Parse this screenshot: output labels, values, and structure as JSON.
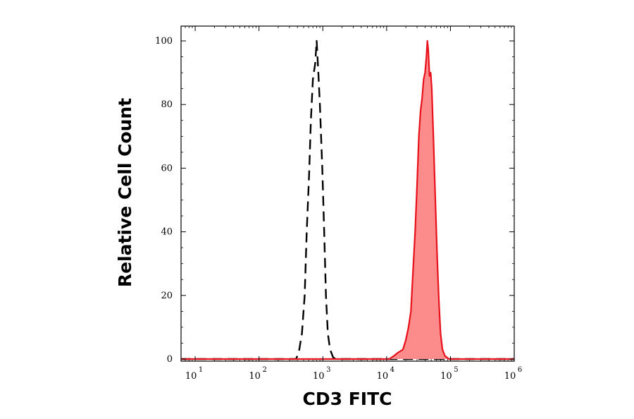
{
  "chart_data": {
    "type": "area",
    "xlabel": "CD3 FITC",
    "ylabel": "Relative Cell Count",
    "xscale": "log",
    "xlim": [
      6,
      1000000
    ],
    "ylim": [
      0,
      104
    ],
    "x_ticks": [
      {
        "base": "10",
        "exp": "1",
        "value": 10
      },
      {
        "base": "10",
        "exp": "2",
        "value": 100
      },
      {
        "base": "10",
        "exp": "3",
        "value": 1000
      },
      {
        "base": "10",
        "exp": "4",
        "value": 10000
      },
      {
        "base": "10",
        "exp": "5",
        "value": 100000
      },
      {
        "base": "10",
        "exp": "6",
        "value": 1000000
      }
    ],
    "y_ticks": [
      "0",
      "20",
      "40",
      "60",
      "80",
      "100"
    ],
    "grid": false,
    "legend": "none",
    "series": [
      {
        "style": "dashed-outline",
        "color": "#000000",
        "points": [
          [
            6,
            0
          ],
          [
            380,
            0
          ],
          [
            420,
            2
          ],
          [
            470,
            8
          ],
          [
            520,
            20
          ],
          [
            560,
            40
          ],
          [
            610,
            58
          ],
          [
            650,
            75
          ],
          [
            700,
            88
          ],
          [
            760,
            93
          ],
          [
            800,
            100
          ],
          [
            850,
            90
          ],
          [
            900,
            80
          ],
          [
            980,
            60
          ],
          [
            1050,
            40
          ],
          [
            1120,
            20
          ],
          [
            1200,
            8
          ],
          [
            1300,
            3
          ],
          [
            1450,
            0.5
          ],
          [
            1600,
            0
          ],
          [
            1000000,
            0
          ]
        ]
      },
      {
        "style": "filled",
        "color": "#e8101a",
        "fill": "#fc8c8c",
        "points": [
          [
            6,
            0
          ],
          [
            11000,
            0
          ],
          [
            13000,
            1
          ],
          [
            15000,
            2
          ],
          [
            18000,
            3
          ],
          [
            20000,
            6
          ],
          [
            22000,
            10
          ],
          [
            24000,
            15
          ],
          [
            26000,
            28
          ],
          [
            28000,
            40
          ],
          [
            30000,
            55
          ],
          [
            32000,
            70
          ],
          [
            34000,
            78
          ],
          [
            36000,
            82
          ],
          [
            38000,
            88
          ],
          [
            40000,
            90
          ],
          [
            42000,
            95
          ],
          [
            43500,
            100
          ],
          [
            45000,
            97
          ],
          [
            47000,
            89
          ],
          [
            49000,
            90
          ],
          [
            51000,
            85
          ],
          [
            54000,
            70
          ],
          [
            58000,
            50
          ],
          [
            62000,
            32
          ],
          [
            66000,
            18
          ],
          [
            70000,
            8
          ],
          [
            75000,
            3
          ],
          [
            82000,
            1
          ],
          [
            95000,
            0
          ],
          [
            1000000,
            0
          ]
        ]
      }
    ]
  }
}
